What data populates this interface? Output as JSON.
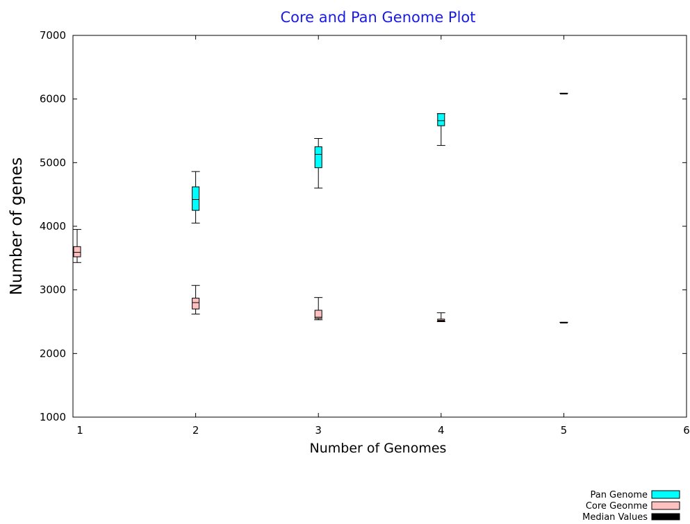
{
  "chart_data": {
    "type": "boxplot",
    "title": "Core and Pan Genome Plot",
    "xlabel": "Number of Genomes",
    "ylabel": "Number of genes",
    "xlim": [
      1,
      6
    ],
    "ylim": [
      1000,
      7000
    ],
    "xticks": [
      1,
      2,
      3,
      4,
      5,
      6
    ],
    "yticks": [
      1000,
      2000,
      3000,
      4000,
      5000,
      6000,
      7000
    ],
    "grid": false,
    "legend_position": "bottom-right",
    "series": [
      {
        "name": "Pan Genome",
        "color": "#00ffff",
        "boxes": [
          {
            "x": 2,
            "min": 4050,
            "q1": 4250,
            "median": 4420,
            "q3": 4620,
            "max": 4860
          },
          {
            "x": 3,
            "min": 4600,
            "q1": 4920,
            "median": 5130,
            "q3": 5250,
            "max": 5380
          },
          {
            "x": 4,
            "min": 5270,
            "q1": 5580,
            "median": 5660,
            "q3": 5770,
            "max": 5770
          },
          {
            "x": 5,
            "min": 6090,
            "q1": 6090,
            "median": 6090,
            "q3": 6090,
            "max": 6090
          }
        ]
      },
      {
        "name": "Core Geonme",
        "color": "#ffc0c0",
        "boxes": [
          {
            "x": 1,
            "min": 3430,
            "q1": 3520,
            "median": 3590,
            "q3": 3680,
            "max": 3950
          },
          {
            "x": 2,
            "min": 2620,
            "q1": 2700,
            "median": 2800,
            "q3": 2870,
            "max": 3070
          },
          {
            "x": 3,
            "min": 2530,
            "q1": 2550,
            "median": 2570,
            "q3": 2680,
            "max": 2880
          },
          {
            "x": 4,
            "min": 2500,
            "q1": 2510,
            "median": 2520,
            "q3": 2540,
            "max": 2640
          },
          {
            "x": 5,
            "min": 2490,
            "q1": 2490,
            "median": 2490,
            "q3": 2490,
            "max": 2490
          }
        ]
      }
    ],
    "median_legend": {
      "name": "Median Values",
      "color": "#000000"
    }
  }
}
